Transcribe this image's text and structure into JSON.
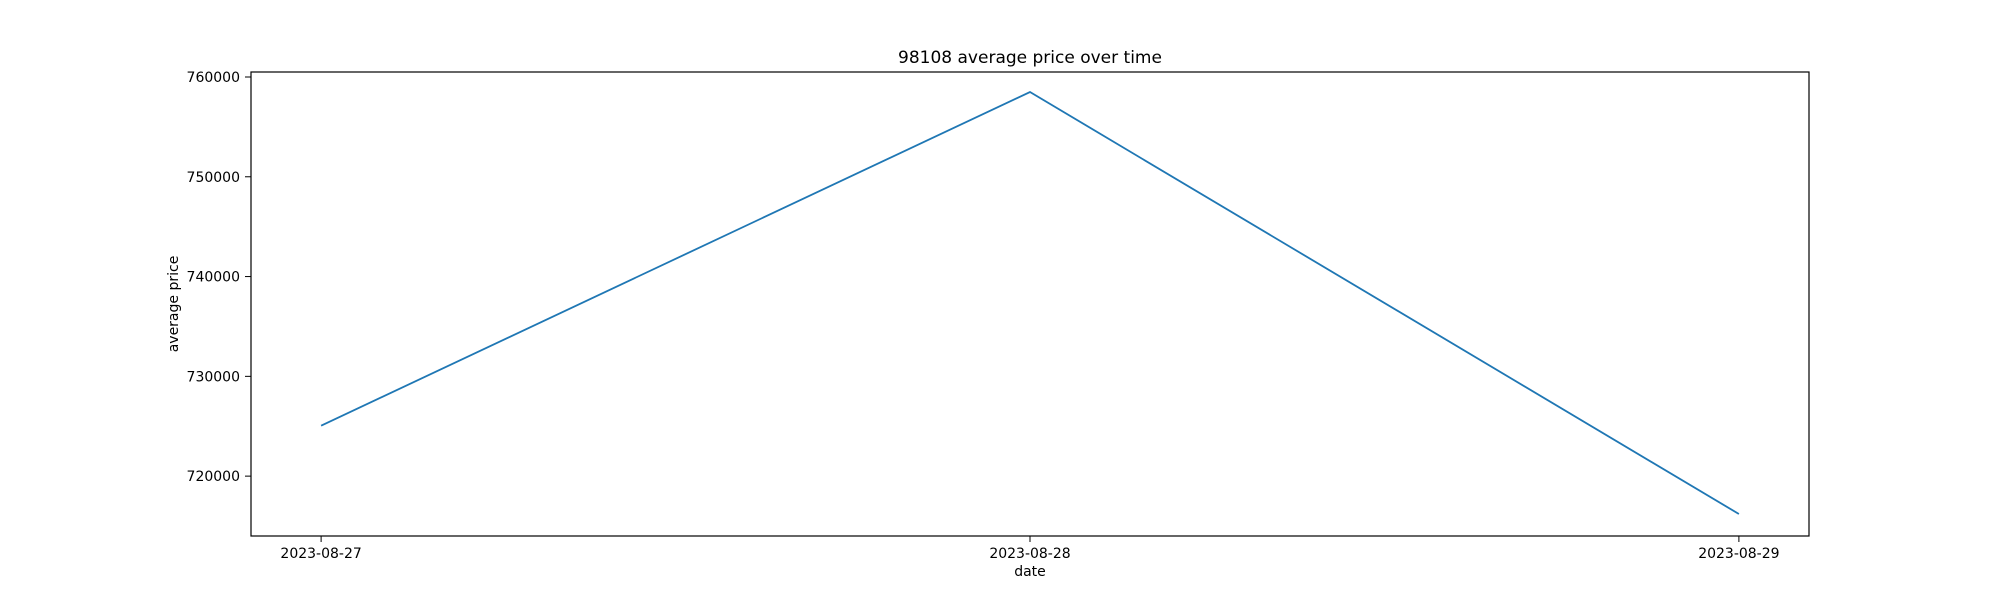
{
  "chart_data": {
    "type": "line",
    "title": "98108 average price over time",
    "xlabel": "date",
    "ylabel": "average price",
    "x": [
      "2023-08-27",
      "2023-08-28",
      "2023-08-29"
    ],
    "series": [
      {
        "values": [
          725050,
          758500,
          716200
        ],
        "color": "#1f77b4"
      }
    ],
    "yticks": [
      720000,
      730000,
      740000,
      750000,
      760000
    ],
    "ytick_labels": [
      "720000",
      "730000",
      "740000",
      "750000",
      "760000"
    ],
    "xtick_labels": [
      "2023-08-27",
      "2023-08-28",
      "2023-08-29"
    ],
    "ylim": [
      714000,
      760500
    ],
    "grid": false,
    "legend": false
  }
}
